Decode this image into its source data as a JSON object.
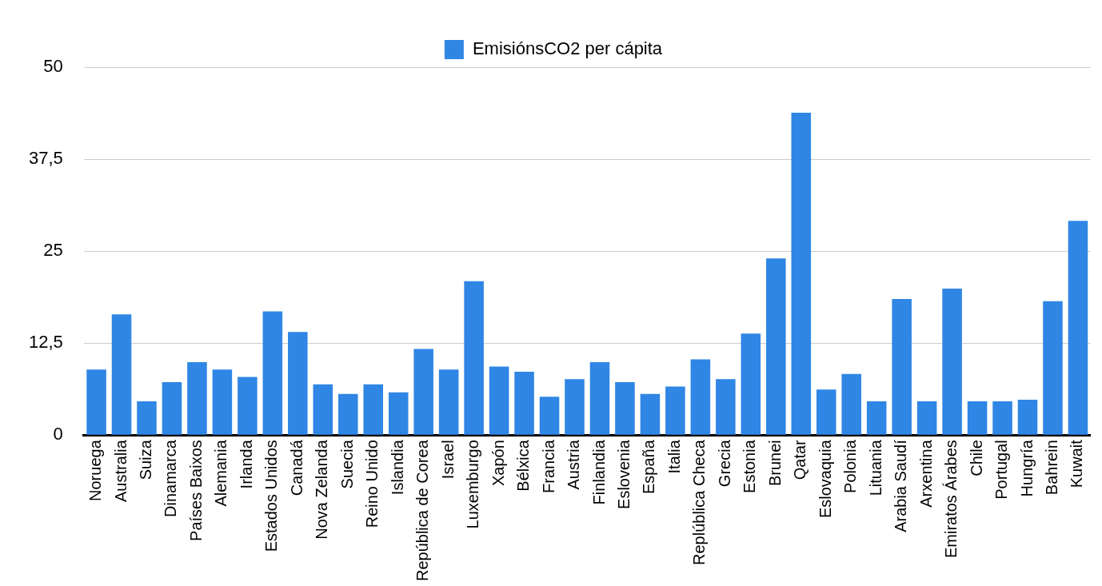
{
  "chart_data": {
    "type": "bar",
    "categories": [
      "Noruega",
      "Australia",
      "Suiza",
      "Dinamarca",
      "Países Baixos",
      "Alemania",
      "Irlanda",
      "Estados Unidos",
      "Canadá",
      "Nova Zelanda",
      "Suecia",
      "Reino Unido",
      "Islandia",
      "República de Corea",
      "Israel",
      "Luxemburgo",
      "Xapón",
      "Bélxica",
      "Francia",
      "Austria",
      "Finlandia",
      "Eslovenia",
      "España",
      "Italia",
      "Replública Checa",
      "Grecia",
      "Estonia",
      "Brunei",
      "Qatar",
      "Eslovaquia",
      "Polonia",
      "Lituania",
      "Arabia Saudí",
      "Arxentina",
      "Emiratos Árabes",
      "Chile",
      "Portugal",
      "Hungría",
      "Bahrein",
      "Kuwait"
    ],
    "series": [
      {
        "name": "EmisiónsCO2 per cápita",
        "color": "#2f86e4",
        "values": [
          8.9,
          16.4,
          4.6,
          7.2,
          9.9,
          8.9,
          7.9,
          16.8,
          14.0,
          6.9,
          5.6,
          6.9,
          5.8,
          11.7,
          8.9,
          20.9,
          9.3,
          8.6,
          5.2,
          7.6,
          9.9,
          7.2,
          5.6,
          6.6,
          10.3,
          7.6,
          13.8,
          24.0,
          43.8,
          6.2,
          8.3,
          4.6,
          18.5,
          4.6,
          19.9,
          4.6,
          4.6,
          4.8,
          18.2,
          29.1
        ]
      }
    ],
    "ylim": [
      0,
      50
    ],
    "yticks": [
      0,
      {
        "value": 12.5,
        "label": "12,5"
      },
      25,
      {
        "value": 37.5,
        "label": "37,5"
      },
      50
    ],
    "grid": "y",
    "legend": "top"
  }
}
